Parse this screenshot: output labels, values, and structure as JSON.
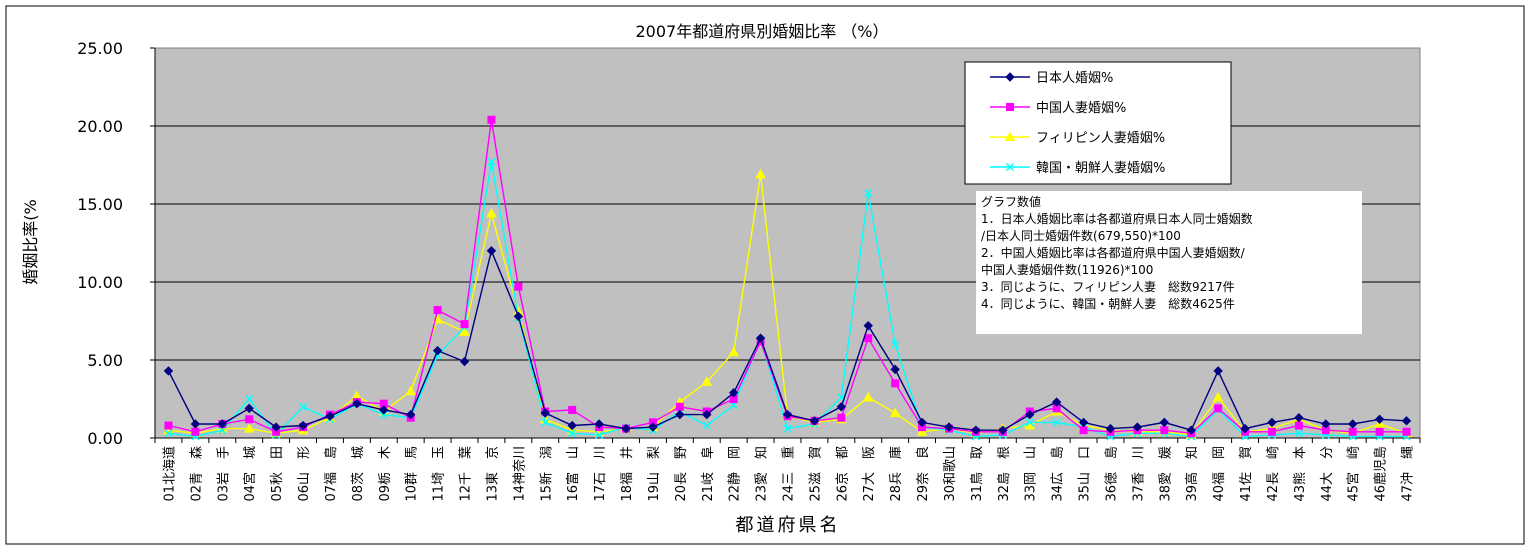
{
  "chart_data": {
    "type": "line",
    "title": "2007年都道府県別婚姻比率 （%）",
    "xlabel": "都道府県名",
    "ylabel": "婚姻比率(%",
    "ylim": [
      0,
      25
    ],
    "yticks": [
      "0.00",
      "5.00",
      "10.00",
      "15.00",
      "20.00",
      "25.00"
    ],
    "grid": "horizontal",
    "legend_position": "top-right",
    "categories": [
      "01北海道",
      "02青　森",
      "03岩　手",
      "04宮　城",
      "05秋　田",
      "06山　形",
      "07福　島",
      "08茨　城",
      "09栃　木",
      "10群　馬",
      "11埼　玉",
      "12千　葉",
      "13東　京",
      "14神奈川",
      "15新　潟",
      "16富　山",
      "17石　川",
      "18福　井",
      "19山　梨",
      "20長　野",
      "21岐　阜",
      "22静　岡",
      "23愛　知",
      "24三　重",
      "25滋　賀",
      "26京　都",
      "27大　阪",
      "28兵　庫",
      "29奈　良",
      "30和歌山",
      "31鳥　取",
      "32島　根",
      "33岡　山",
      "34広　島",
      "35山　口",
      "36徳　島",
      "37香　川",
      "38愛　媛",
      "39高　知",
      "40福　岡",
      "41佐　賀",
      "42長　崎",
      "43熊　本",
      "44大　分",
      "45宮　崎",
      "46鹿児島",
      "47沖　縄"
    ],
    "series": [
      {
        "name": "日本人婚姻%",
        "color": "#000080",
        "marker": "diamond",
        "values": [
          4.3,
          0.9,
          0.9,
          1.9,
          0.7,
          0.8,
          1.4,
          2.2,
          1.8,
          1.5,
          5.6,
          4.9,
          12.0,
          7.8,
          1.6,
          0.8,
          0.9,
          0.6,
          0.7,
          1.5,
          1.5,
          2.9,
          6.4,
          1.5,
          1.1,
          2.0,
          7.2,
          4.4,
          1.0,
          0.7,
          0.5,
          0.5,
          1.5,
          2.3,
          1.0,
          0.6,
          0.7,
          1.0,
          0.5,
          4.3,
          0.6,
          1.0,
          1.3,
          0.9,
          0.9,
          1.2,
          1.1
        ]
      },
      {
        "name": "中国人妻婚姻%",
        "color": "#FF00FF",
        "marker": "square",
        "values": [
          0.8,
          0.4,
          0.9,
          1.2,
          0.4,
          0.7,
          1.5,
          2.3,
          2.2,
          1.3,
          8.2,
          7.3,
          20.4,
          9.7,
          1.7,
          1.8,
          0.7,
          0.6,
          1.0,
          2.0,
          1.7,
          2.5,
          6.2,
          1.4,
          1.1,
          1.3,
          6.4,
          3.5,
          0.7,
          0.6,
          0.4,
          0.4,
          1.7,
          1.9,
          0.5,
          0.4,
          0.5,
          0.5,
          0.3,
          1.9,
          0.4,
          0.4,
          0.8,
          0.5,
          0.4,
          0.4,
          0.4
        ]
      },
      {
        "name": "フィリピン人妻婚姻%",
        "color": "#FFFF00",
        "marker": "triangle",
        "values": [
          0.5,
          0.3,
          0.6,
          0.6,
          0.3,
          0.5,
          1.3,
          2.7,
          1.7,
          3.0,
          7.6,
          6.8,
          14.4,
          8.1,
          1.2,
          0.5,
          0.4,
          0.6,
          0.7,
          2.3,
          3.6,
          5.5,
          16.9,
          1.4,
          1.0,
          1.2,
          2.6,
          1.6,
          0.4,
          0.6,
          0.3,
          0.6,
          0.8,
          1.7,
          0.8,
          0.5,
          0.4,
          0.4,
          0.2,
          2.6,
          0.4,
          0.6,
          1.2,
          0.5,
          0.3,
          0.9,
          0.3
        ]
      },
      {
        "name": "韓国・朝鮮人妻婚姻%",
        "color": "#00FFFF",
        "marker": "x",
        "values": [
          0.3,
          0.1,
          0.5,
          2.5,
          0.2,
          2.0,
          1.2,
          2.2,
          1.5,
          1.3,
          5.3,
          7.1,
          17.7,
          7.7,
          1.0,
          0.3,
          0.2,
          0.7,
          0.5,
          1.7,
          0.8,
          2.1,
          6.3,
          0.6,
          0.9,
          2.6,
          15.7,
          6.0,
          0.7,
          0.5,
          0.1,
          0.2,
          1.0,
          1.0,
          0.7,
          0.1,
          0.3,
          0.3,
          0.1,
          1.8,
          0.1,
          0.2,
          0.3,
          0.2,
          0.1,
          0.1,
          0.1
        ]
      }
    ],
    "annotation": {
      "title": "グラフ数値",
      "lines": [
        "1．日本人婚姻比率は各都道府県日本人同士婚姻数",
        "/日本人同士婚姻件数(679,550)*100",
        "2．中国人婚姻比率は各都道府県中国人妻婚姻数/",
        "中国人妻婚姻件数(11926)*100",
        "3．同じように、フィリピン人妻　総数9217件",
        "4．同じように、韓国・朝鮮人妻　総数4625件"
      ]
    }
  }
}
